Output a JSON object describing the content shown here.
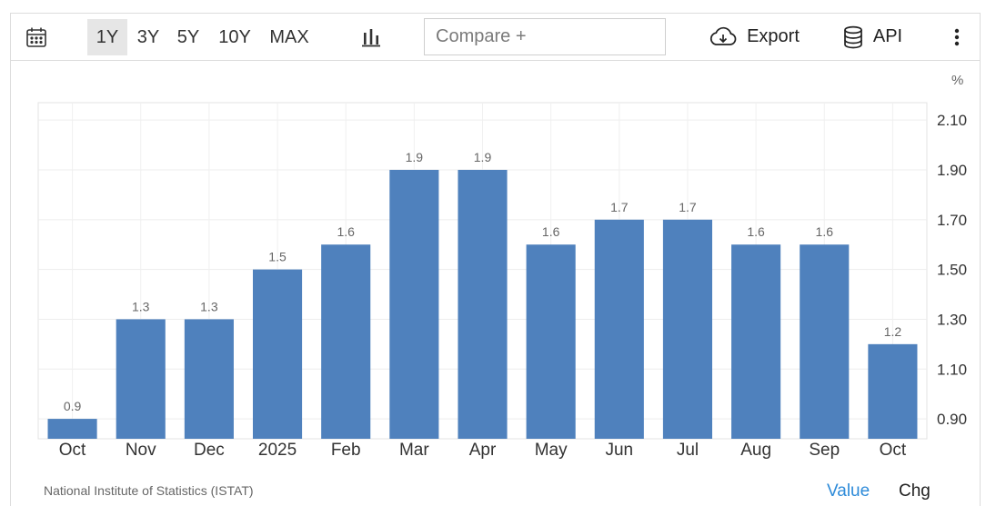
{
  "toolbar": {
    "calendar_icon": "calendar-icon",
    "ranges": [
      "1Y",
      "3Y",
      "5Y",
      "10Y",
      "MAX"
    ],
    "active_range": "1Y",
    "chart_type_icon": "bar-chart-icon",
    "compare_placeholder": "Compare +",
    "export_label": "Export",
    "export_icon": "cloud-download-icon",
    "api_label": "API",
    "api_icon": "database-icon",
    "more_icon": "vertical-dots-icon"
  },
  "chart_data": {
    "type": "bar",
    "unit": "%",
    "categories": [
      "Oct",
      "Nov",
      "Dec",
      "2025",
      "Feb",
      "Mar",
      "Apr",
      "May",
      "Jun",
      "Jul",
      "Aug",
      "Sep",
      "Oct"
    ],
    "values": [
      0.9,
      1.3,
      1.3,
      1.5,
      1.6,
      1.9,
      1.9,
      1.6,
      1.7,
      1.7,
      1.6,
      1.6,
      1.2
    ],
    "data_labels": [
      "0.9",
      "1.3",
      "1.3",
      "1.5",
      "1.6",
      "1.9",
      "1.9",
      "1.6",
      "1.7",
      "1.7",
      "1.6",
      "1.6",
      "1.2"
    ],
    "y_ticks": [
      0.9,
      1.1,
      1.3,
      1.5,
      1.7,
      1.9,
      2.1
    ],
    "y_tick_labels": [
      "0.90",
      "1.10",
      "1.30",
      "1.50",
      "1.70",
      "1.90",
      "2.10"
    ],
    "ylim": [
      0.82,
      2.17
    ],
    "y_axis_position": "right",
    "grid": true,
    "bar_color": "#4f81bd"
  },
  "footer": {
    "source": "National Institute of Statistics (ISTAT)",
    "value_tab": "Value",
    "chg_tab": "Chg",
    "value_color": "#2e8bd9"
  }
}
